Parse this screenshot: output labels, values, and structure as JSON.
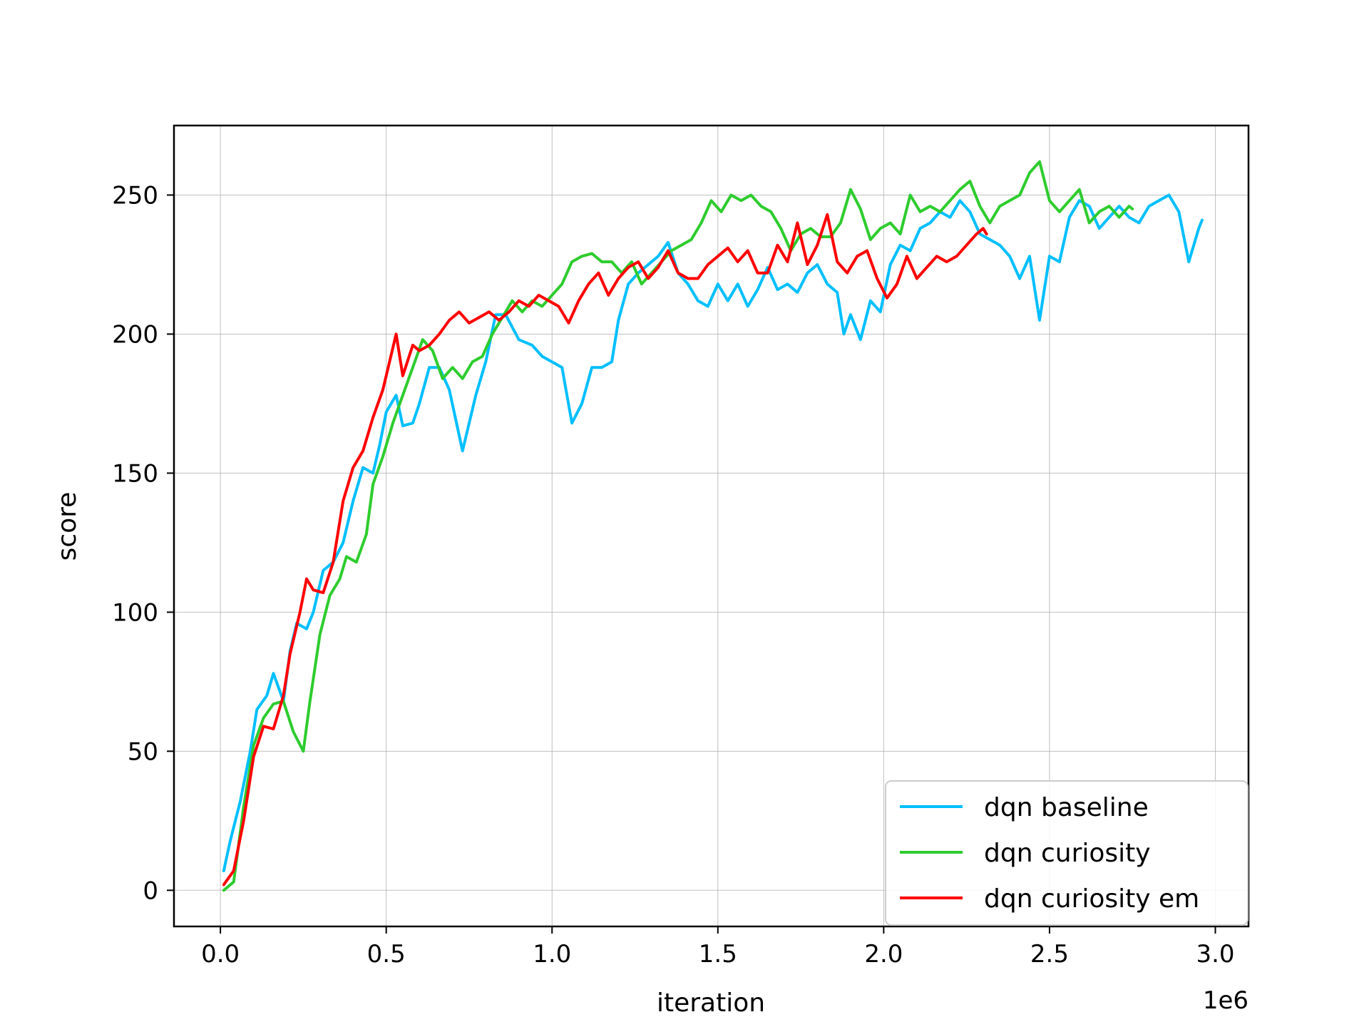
{
  "chart_data": {
    "type": "line",
    "title": "",
    "xlabel": "iteration",
    "ylabel": "score",
    "x_offset_text": "1e6",
    "xlim": [
      -0.14,
      3.1
    ],
    "ylim": [
      -13,
      275
    ],
    "x_ticks": [
      0.0,
      0.5,
      1.0,
      1.5,
      2.0,
      2.5,
      3.0
    ],
    "x_tick_labels": [
      "0.0",
      "0.5",
      "1.0",
      "1.5",
      "2.0",
      "2.5",
      "3.0"
    ],
    "y_ticks": [
      0,
      50,
      100,
      150,
      200,
      250
    ],
    "y_tick_labels": [
      "0",
      "50",
      "100",
      "150",
      "200",
      "250"
    ],
    "grid": true,
    "legend_position": "lower-right",
    "x_unit": "millions of iterations",
    "series": [
      {
        "name": "dqn baseline",
        "color": "#00bfff",
        "points": [
          [
            0.01,
            7
          ],
          [
            0.03,
            18
          ],
          [
            0.06,
            32
          ],
          [
            0.09,
            50
          ],
          [
            0.11,
            65
          ],
          [
            0.14,
            70
          ],
          [
            0.16,
            78
          ],
          [
            0.19,
            68
          ],
          [
            0.21,
            86
          ],
          [
            0.23,
            96
          ],
          [
            0.26,
            94
          ],
          [
            0.28,
            100
          ],
          [
            0.31,
            115
          ],
          [
            0.34,
            118
          ],
          [
            0.37,
            125
          ],
          [
            0.4,
            140
          ],
          [
            0.43,
            152
          ],
          [
            0.46,
            150
          ],
          [
            0.48,
            160
          ],
          [
            0.5,
            172
          ],
          [
            0.53,
            178
          ],
          [
            0.55,
            167
          ],
          [
            0.58,
            168
          ],
          [
            0.6,
            175
          ],
          [
            0.63,
            188
          ],
          [
            0.66,
            188
          ],
          [
            0.69,
            180
          ],
          [
            0.73,
            158
          ],
          [
            0.77,
            178
          ],
          [
            0.8,
            190
          ],
          [
            0.83,
            207
          ],
          [
            0.86,
            207
          ],
          [
            0.9,
            198
          ],
          [
            0.94,
            196
          ],
          [
            0.97,
            192
          ],
          [
            1.0,
            190
          ],
          [
            1.03,
            188
          ],
          [
            1.06,
            168
          ],
          [
            1.09,
            175
          ],
          [
            1.12,
            188
          ],
          [
            1.15,
            188
          ],
          [
            1.18,
            190
          ],
          [
            1.2,
            205
          ],
          [
            1.23,
            218
          ],
          [
            1.26,
            222
          ],
          [
            1.29,
            225
          ],
          [
            1.32,
            228
          ],
          [
            1.35,
            233
          ],
          [
            1.38,
            222
          ],
          [
            1.41,
            218
          ],
          [
            1.44,
            212
          ],
          [
            1.47,
            210
          ],
          [
            1.5,
            218
          ],
          [
            1.53,
            212
          ],
          [
            1.56,
            218
          ],
          [
            1.59,
            210
          ],
          [
            1.62,
            216
          ],
          [
            1.65,
            224
          ],
          [
            1.68,
            216
          ],
          [
            1.71,
            218
          ],
          [
            1.74,
            215
          ],
          [
            1.77,
            222
          ],
          [
            1.8,
            225
          ],
          [
            1.83,
            218
          ],
          [
            1.86,
            215
          ],
          [
            1.88,
            200
          ],
          [
            1.9,
            207
          ],
          [
            1.93,
            198
          ],
          [
            1.96,
            212
          ],
          [
            1.99,
            208
          ],
          [
            2.02,
            225
          ],
          [
            2.05,
            232
          ],
          [
            2.08,
            230
          ],
          [
            2.11,
            238
          ],
          [
            2.14,
            240
          ],
          [
            2.17,
            244
          ],
          [
            2.2,
            242
          ],
          [
            2.23,
            248
          ],
          [
            2.26,
            244
          ],
          [
            2.29,
            236
          ],
          [
            2.32,
            234
          ],
          [
            2.35,
            232
          ],
          [
            2.38,
            228
          ],
          [
            2.41,
            220
          ],
          [
            2.44,
            228
          ],
          [
            2.47,
            205
          ],
          [
            2.5,
            228
          ],
          [
            2.53,
            226
          ],
          [
            2.56,
            242
          ],
          [
            2.59,
            248
          ],
          [
            2.62,
            246
          ],
          [
            2.65,
            238
          ],
          [
            2.68,
            242
          ],
          [
            2.71,
            246
          ],
          [
            2.74,
            242
          ],
          [
            2.77,
            240
          ],
          [
            2.8,
            246
          ],
          [
            2.83,
            248
          ],
          [
            2.86,
            250
          ],
          [
            2.89,
            244
          ],
          [
            2.92,
            226
          ],
          [
            2.95,
            238
          ],
          [
            2.96,
            241
          ]
        ]
      },
      {
        "name": "dqn curiosity",
        "color": "#2ecc2e",
        "points": [
          [
            0.01,
            0
          ],
          [
            0.04,
            3
          ],
          [
            0.07,
            30
          ],
          [
            0.1,
            52
          ],
          [
            0.13,
            62
          ],
          [
            0.16,
            67
          ],
          [
            0.19,
            68
          ],
          [
            0.22,
            57
          ],
          [
            0.25,
            50
          ],
          [
            0.27,
            68
          ],
          [
            0.3,
            92
          ],
          [
            0.33,
            106
          ],
          [
            0.36,
            112
          ],
          [
            0.38,
            120
          ],
          [
            0.41,
            118
          ],
          [
            0.44,
            128
          ],
          [
            0.46,
            146
          ],
          [
            0.49,
            156
          ],
          [
            0.52,
            168
          ],
          [
            0.55,
            178
          ],
          [
            0.58,
            188
          ],
          [
            0.61,
            198
          ],
          [
            0.64,
            194
          ],
          [
            0.67,
            184
          ],
          [
            0.7,
            188
          ],
          [
            0.73,
            184
          ],
          [
            0.76,
            190
          ],
          [
            0.79,
            192
          ],
          [
            0.82,
            200
          ],
          [
            0.85,
            206
          ],
          [
            0.88,
            212
          ],
          [
            0.91,
            208
          ],
          [
            0.94,
            212
          ],
          [
            0.97,
            210
          ],
          [
            1.0,
            214
          ],
          [
            1.03,
            218
          ],
          [
            1.06,
            226
          ],
          [
            1.09,
            228
          ],
          [
            1.12,
            229
          ],
          [
            1.15,
            226
          ],
          [
            1.18,
            226
          ],
          [
            1.21,
            222
          ],
          [
            1.24,
            226
          ],
          [
            1.27,
            218
          ],
          [
            1.3,
            222
          ],
          [
            1.33,
            226
          ],
          [
            1.36,
            230
          ],
          [
            1.39,
            232
          ],
          [
            1.42,
            234
          ],
          [
            1.45,
            240
          ],
          [
            1.48,
            248
          ],
          [
            1.51,
            244
          ],
          [
            1.54,
            250
          ],
          [
            1.57,
            248
          ],
          [
            1.6,
            250
          ],
          [
            1.63,
            246
          ],
          [
            1.66,
            244
          ],
          [
            1.69,
            238
          ],
          [
            1.72,
            230
          ],
          [
            1.75,
            236
          ],
          [
            1.78,
            238
          ],
          [
            1.81,
            235
          ],
          [
            1.84,
            235
          ],
          [
            1.87,
            240
          ],
          [
            1.9,
            252
          ],
          [
            1.93,
            245
          ],
          [
            1.96,
            234
          ],
          [
            1.99,
            238
          ],
          [
            2.02,
            240
          ],
          [
            2.05,
            236
          ],
          [
            2.08,
            250
          ],
          [
            2.11,
            244
          ],
          [
            2.14,
            246
          ],
          [
            2.17,
            244
          ],
          [
            2.2,
            248
          ],
          [
            2.23,
            252
          ],
          [
            2.26,
            255
          ],
          [
            2.29,
            246
          ],
          [
            2.32,
            240
          ],
          [
            2.35,
            246
          ],
          [
            2.38,
            248
          ],
          [
            2.41,
            250
          ],
          [
            2.44,
            258
          ],
          [
            2.47,
            262
          ],
          [
            2.5,
            248
          ],
          [
            2.53,
            244
          ],
          [
            2.56,
            248
          ],
          [
            2.59,
            252
          ],
          [
            2.62,
            240
          ],
          [
            2.65,
            244
          ],
          [
            2.68,
            246
          ],
          [
            2.71,
            242
          ],
          [
            2.74,
            246
          ],
          [
            2.75,
            245
          ]
        ]
      },
      {
        "name": "dqn curiosity em",
        "color": "#ff0000",
        "points": [
          [
            0.01,
            2
          ],
          [
            0.04,
            7
          ],
          [
            0.07,
            25
          ],
          [
            0.1,
            48
          ],
          [
            0.13,
            59
          ],
          [
            0.16,
            58
          ],
          [
            0.19,
            70
          ],
          [
            0.21,
            85
          ],
          [
            0.24,
            100
          ],
          [
            0.26,
            112
          ],
          [
            0.28,
            108
          ],
          [
            0.31,
            107
          ],
          [
            0.34,
            118
          ],
          [
            0.37,
            140
          ],
          [
            0.4,
            152
          ],
          [
            0.43,
            158
          ],
          [
            0.46,
            170
          ],
          [
            0.49,
            180
          ],
          [
            0.51,
            190
          ],
          [
            0.53,
            200
          ],
          [
            0.55,
            185
          ],
          [
            0.58,
            196
          ],
          [
            0.6,
            194
          ],
          [
            0.63,
            196
          ],
          [
            0.66,
            200
          ],
          [
            0.69,
            205
          ],
          [
            0.72,
            208
          ],
          [
            0.75,
            204
          ],
          [
            0.78,
            206
          ],
          [
            0.81,
            208
          ],
          [
            0.84,
            205
          ],
          [
            0.87,
            208
          ],
          [
            0.9,
            212
          ],
          [
            0.93,
            210
          ],
          [
            0.96,
            214
          ],
          [
            0.99,
            212
          ],
          [
            1.02,
            210
          ],
          [
            1.05,
            204
          ],
          [
            1.08,
            212
          ],
          [
            1.11,
            218
          ],
          [
            1.14,
            222
          ],
          [
            1.17,
            214
          ],
          [
            1.2,
            220
          ],
          [
            1.23,
            224
          ],
          [
            1.26,
            226
          ],
          [
            1.29,
            220
          ],
          [
            1.32,
            224
          ],
          [
            1.35,
            230
          ],
          [
            1.38,
            222
          ],
          [
            1.41,
            220
          ],
          [
            1.44,
            220
          ],
          [
            1.47,
            225
          ],
          [
            1.5,
            228
          ],
          [
            1.53,
            231
          ],
          [
            1.56,
            226
          ],
          [
            1.59,
            230
          ],
          [
            1.62,
            222
          ],
          [
            1.65,
            222
          ],
          [
            1.68,
            232
          ],
          [
            1.71,
            226
          ],
          [
            1.74,
            240
          ],
          [
            1.77,
            225
          ],
          [
            1.8,
            232
          ],
          [
            1.83,
            243
          ],
          [
            1.86,
            226
          ],
          [
            1.89,
            222
          ],
          [
            1.92,
            228
          ],
          [
            1.95,
            230
          ],
          [
            1.98,
            220
          ],
          [
            2.01,
            213
          ],
          [
            2.04,
            218
          ],
          [
            2.07,
            228
          ],
          [
            2.1,
            220
          ],
          [
            2.13,
            224
          ],
          [
            2.16,
            228
          ],
          [
            2.19,
            226
          ],
          [
            2.22,
            228
          ],
          [
            2.25,
            232
          ],
          [
            2.28,
            236
          ],
          [
            2.3,
            238
          ],
          [
            2.31,
            236
          ]
        ]
      }
    ]
  }
}
